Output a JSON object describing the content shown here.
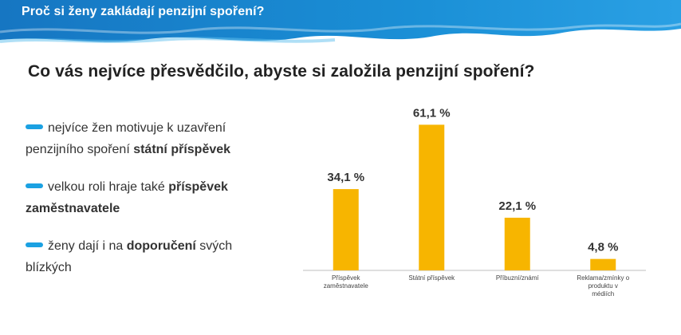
{
  "header": {
    "title": "Proč si ženy zakládají penzijní spoření?"
  },
  "question": "Co vás nejvíce přesvědčilo, abyste si založila penzijní spoření?",
  "bullets": [
    {
      "parts": [
        "nejvíce žen motivuje k uzavření penzijního spoření ",
        "státní příspěvek"
      ]
    },
    {
      "parts": [
        "velkou roli hraje také ",
        "příspěvek zaměstnavatele"
      ]
    },
    {
      "parts": [
        "ženy dají i na ",
        "doporučení",
        " svých blízkých"
      ]
    }
  ],
  "colors": {
    "banner": "#1a8fd6",
    "bar": "#f7b500",
    "bullet": "#1ba1e2"
  },
  "chart_data": {
    "type": "bar",
    "categories": [
      "Příspěvek zaměstnavatele",
      "Státní příspěvek",
      "Příbuzní/známí",
      "Reklama/zmínky o produktu v médiích"
    ],
    "values": [
      34.1,
      61.1,
      22.1,
      4.8
    ],
    "data_labels": [
      "34,1 %",
      "61,1 %",
      "22,1 %",
      "4,8 %"
    ],
    "ylim": [
      0,
      70
    ],
    "grid": false
  }
}
